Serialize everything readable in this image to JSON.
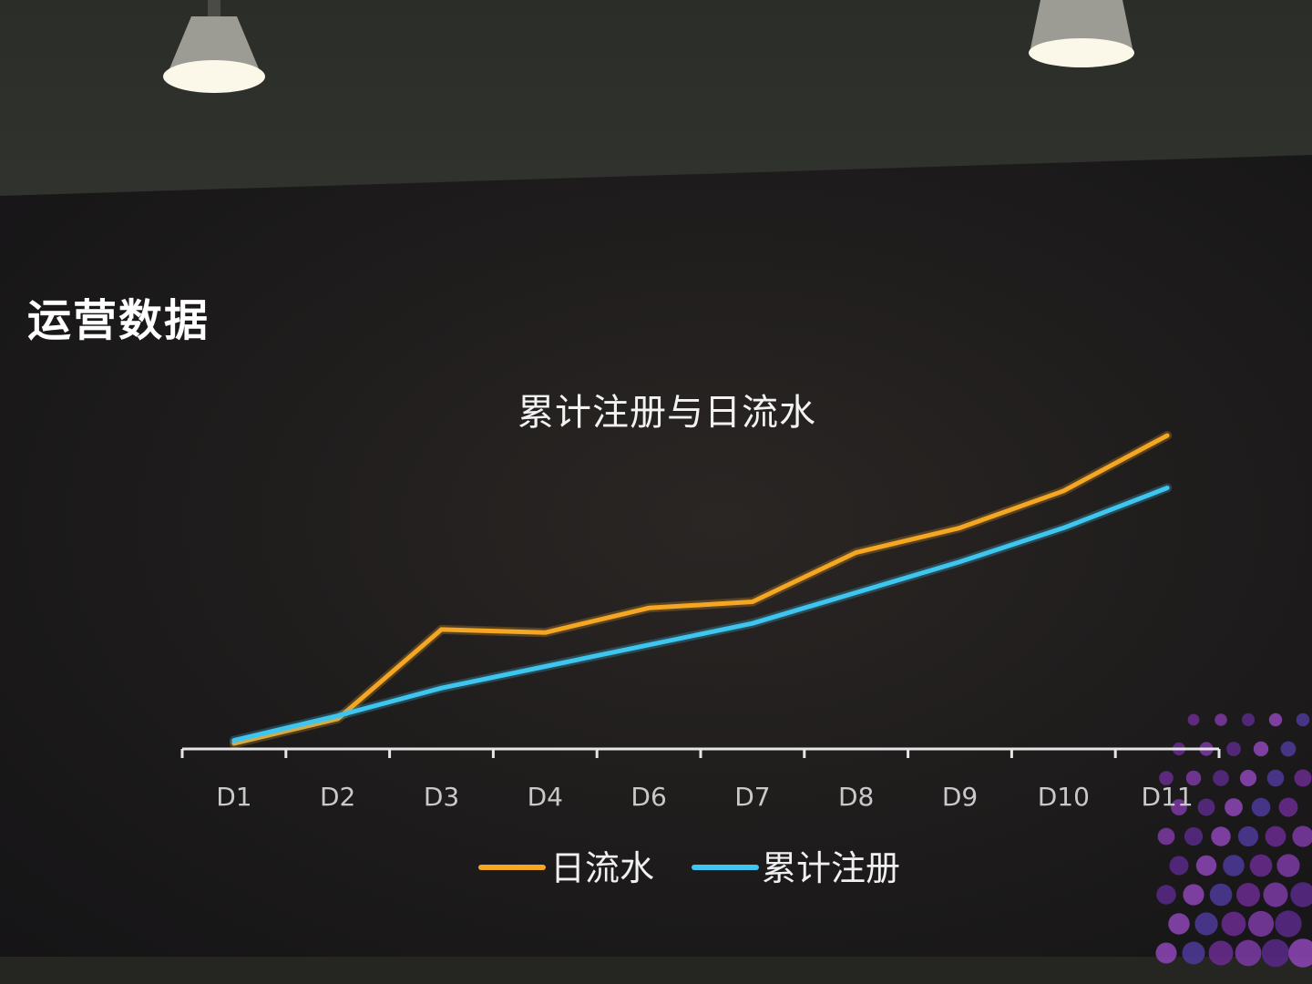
{
  "page_title": "运营数据",
  "chart_data": {
    "type": "line",
    "title": "累计注册与日流水",
    "xlabel": "",
    "ylabel": "",
    "categories": [
      "D1",
      "D2",
      "D3",
      "D4",
      "D6",
      "D7",
      "D8",
      "D9",
      "D10",
      "D11"
    ],
    "ylim": [
      0,
      100
    ],
    "grid": false,
    "legend_position": "bottom-center",
    "series": [
      {
        "name": "日流水",
        "color": "#f5a623",
        "values": [
          0,
          8,
          37,
          36,
          44,
          46,
          62,
          70,
          82,
          100
        ]
      },
      {
        "name": "累计注册",
        "color": "#3fc6f0",
        "values": [
          1,
          9,
          18,
          25,
          32,
          39,
          49,
          59,
          70,
          83
        ]
      }
    ]
  }
}
